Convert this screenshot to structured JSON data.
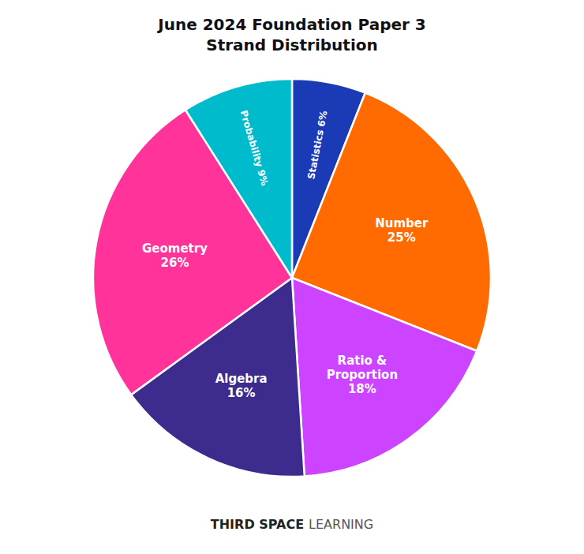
{
  "chart_data": {
    "type": "pie",
    "title": "June 2024 Foundation Paper 3\nStrand Distribution",
    "categories": [
      "Statistics 6%",
      "Number\n25%",
      "Ratio &\nProportion\n18%",
      "Algebra\n16%",
      "Geometry\n26%",
      "Probability 9%"
    ],
    "values": [
      6,
      25,
      18,
      16,
      26,
      9
    ],
    "colors": [
      "#1A3BB5",
      "#FF6B00",
      "#CC44FF",
      "#3D2B8E",
      "#FF3399",
      "#00BBCC"
    ],
    "annotations": [
      "THIRD SPACE",
      "LEARNING"
    ]
  }
}
